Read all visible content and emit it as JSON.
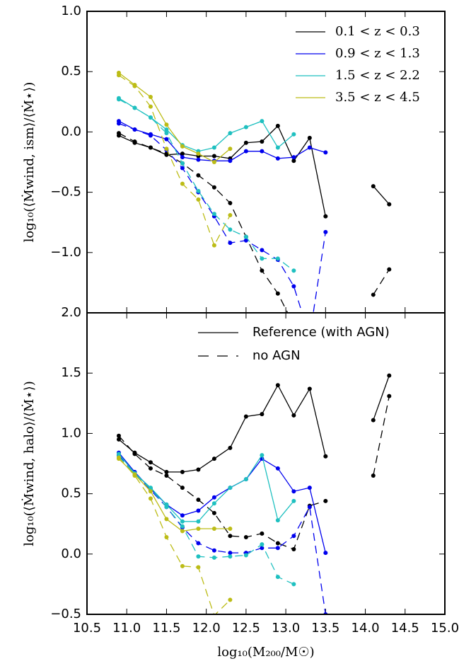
{
  "chart_data": [
    {
      "type": "line",
      "ylabel": "log₁₀(⟨Ṁwind, ism⟩/⟨Ṁ⋆⟩)",
      "x": [
        10.9,
        11.1,
        11.3,
        11.5,
        11.7,
        11.9,
        12.1,
        12.3,
        12.5,
        12.7,
        12.9,
        13.1,
        13.3,
        13.5,
        13.7,
        13.9,
        14.1,
        14.3
      ],
      "xlim": [
        10.5,
        15.0
      ],
      "ylim": [
        -1.5,
        1.0
      ],
      "yticks": [
        {
          "value": 1.0,
          "label": "1.0"
        },
        0.5,
        {
          "value": 0,
          "label": "0.0"
        },
        {
          "value": -0.5,
          "label": "−0.5"
        },
        {
          "value": -1.0,
          "label": "−1.0"
        }
      ],
      "legend": "upper right",
      "series": [
        {
          "name": "0.1 < z < 0.3",
          "color": "#000000",
          "values": [
            -0.03,
            -0.09,
            -0.13,
            -0.19,
            -0.18,
            -0.2,
            -0.2,
            -0.22,
            -0.09,
            -0.08,
            0.05,
            -0.24,
            -0.05,
            -0.7,
            null,
            null,
            -0.45,
            -0.6
          ],
          "no_agn_values": [
            -0.01,
            -0.08,
            -0.13,
            -0.18,
            -0.26,
            -0.36,
            -0.46,
            -0.59,
            -0.87,
            -1.15,
            -1.34,
            -1.6,
            null,
            null,
            null,
            null,
            -1.35,
            -1.14
          ]
        },
        {
          "name": "0.9 < z < 1.3",
          "color": "#0000ee",
          "values": [
            0.09,
            0.02,
            -0.02,
            -0.06,
            -0.21,
            -0.23,
            -0.24,
            -0.24,
            -0.16,
            -0.16,
            -0.22,
            -0.21,
            -0.13,
            -0.17,
            null,
            null,
            null,
            null
          ],
          "no_agn_values": [
            0.07,
            0.02,
            -0.03,
            -0.15,
            -0.3,
            -0.5,
            -0.7,
            -0.92,
            -0.9,
            -0.98,
            -1.06,
            -1.28,
            -1.7,
            -0.83,
            null,
            null,
            null,
            null
          ]
        },
        {
          "name": "1.5 < z < 2.2",
          "color": "#1fc0c0",
          "values": [
            0.28,
            0.2,
            0.12,
            0.02,
            -0.11,
            -0.16,
            -0.13,
            -0.01,
            0.04,
            0.09,
            -0.13,
            -0.02,
            null,
            null,
            null,
            null,
            null,
            null
          ],
          "no_agn_values": [
            0.27,
            0.2,
            0.12,
            -0.01,
            -0.26,
            -0.49,
            -0.68,
            -0.81,
            -0.87,
            -1.05,
            -1.05,
            -1.15,
            null,
            null,
            null,
            null,
            null,
            null
          ]
        },
        {
          "name": "3.5 < z < 4.5",
          "color": "#bcbc16",
          "values": [
            0.49,
            0.39,
            0.29,
            0.06,
            -0.12,
            -0.18,
            -0.25,
            -0.14,
            null,
            null,
            null,
            null,
            null,
            null,
            null,
            null,
            null,
            null
          ],
          "no_agn_values": [
            0.47,
            0.38,
            0.21,
            -0.14,
            -0.43,
            -0.56,
            -0.94,
            -0.69,
            null,
            null,
            null,
            null,
            null,
            null,
            null,
            null,
            null,
            null
          ]
        }
      ]
    },
    {
      "type": "line",
      "ylabel": "log₁₀(⟨Ṁwind, halo⟩/⟨Ṁ⋆⟩)",
      "xlabel": "log₁₀(M₂₀₀/M☉)",
      "x": [
        10.9,
        11.1,
        11.3,
        11.5,
        11.7,
        11.9,
        12.1,
        12.3,
        12.5,
        12.7,
        12.9,
        13.1,
        13.3,
        13.5,
        13.7,
        13.9,
        14.1,
        14.3
      ],
      "xlim": [
        10.5,
        15.0
      ],
      "xticks": [
        10.5,
        {
          "value": 11,
          "label": "11.0"
        },
        11.5,
        {
          "value": 12,
          "label": "12.0"
        },
        12.5,
        {
          "value": 13,
          "label": "13.0"
        },
        13.5,
        {
          "value": 14,
          "label": "14.0"
        },
        14.5,
        {
          "value": 15,
          "label": "15.0"
        }
      ],
      "ylim": [
        -0.5,
        2.0
      ],
      "yticks": [
        {
          "value": 2.0,
          "label": "2.0"
        },
        1.5,
        {
          "value": 1.0,
          "label": "1.0"
        },
        0.5,
        {
          "value": 0,
          "label": "0.0"
        },
        {
          "value": -0.5,
          "label": "−0.5"
        }
      ],
      "style_legend": {
        "solid": "Reference (with AGN)",
        "dashed": "no AGN"
      },
      "series": [
        {
          "color": "#000000",
          "values": [
            0.95,
            0.84,
            0.76,
            0.68,
            0.68,
            0.7,
            0.79,
            0.88,
            1.14,
            1.16,
            1.4,
            1.15,
            1.37,
            0.81,
            null,
            null,
            1.11,
            1.48
          ],
          "no_agn_values": [
            0.98,
            0.83,
            0.71,
            0.65,
            0.55,
            0.45,
            0.34,
            0.15,
            0.14,
            0.17,
            0.09,
            0.04,
            0.4,
            0.44,
            null,
            null,
            0.65,
            1.31
          ]
        },
        {
          "color": "#0000ee",
          "values": [
            0.84,
            0.68,
            0.54,
            0.41,
            0.32,
            0.36,
            0.47,
            0.55,
            0.62,
            0.79,
            0.71,
            0.52,
            0.55,
            0.01,
            null,
            null,
            null,
            null
          ],
          "no_agn_values": [
            0.82,
            0.67,
            0.53,
            0.39,
            0.22,
            0.09,
            0.03,
            0.01,
            0.01,
            0.05,
            0.05,
            0.15,
            0.39,
            -0.5,
            null,
            null,
            null,
            null
          ]
        },
        {
          "color": "#1fc0c0",
          "values": [
            0.83,
            0.67,
            0.55,
            0.41,
            0.27,
            0.27,
            0.42,
            0.55,
            0.62,
            0.82,
            0.28,
            0.44,
            null,
            null,
            null,
            null,
            null,
            null
          ],
          "no_agn_values": [
            0.81,
            0.66,
            0.54,
            0.39,
            0.23,
            -0.02,
            -0.03,
            -0.02,
            -0.01,
            0.08,
            -0.19,
            -0.25,
            null,
            null,
            null,
            null,
            null,
            null
          ]
        },
        {
          "color": "#bcbc16",
          "values": [
            0.79,
            0.66,
            0.52,
            0.29,
            0.19,
            0.21,
            0.21,
            0.21,
            null,
            null,
            null,
            null,
            null,
            null,
            null,
            null,
            null,
            null
          ],
          "no_agn_values": [
            0.8,
            0.65,
            0.46,
            0.14,
            -0.1,
            -0.11,
            -0.51,
            -0.38,
            null,
            null,
            null,
            null,
            null,
            null,
            null,
            null,
            null,
            null
          ]
        }
      ]
    }
  ]
}
